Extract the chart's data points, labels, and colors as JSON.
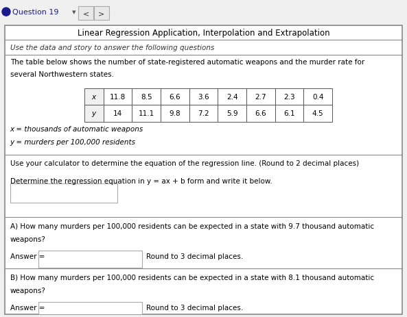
{
  "title": "Linear Regression Application, Interpolation and Extrapolation",
  "subtitle": "Use the data and story to answer the following questions",
  "desc_line1": "The table below shows the number of state-registered automatic weapons and the murder rate for",
  "desc_line2": "several Northwestern states.",
  "x_row": [
    "x",
    "11.8",
    "8.5",
    "6.6",
    "3.6",
    "2.4",
    "2.7",
    "2.3",
    "0.4"
  ],
  "y_row": [
    "y",
    "14",
    "11.1",
    "9.8",
    "7.2",
    "5.9",
    "6.6",
    "6.1",
    "4.5"
  ],
  "x_label": "x = thousands of automatic weapons",
  "y_label": "y = murders per 100,000 residents",
  "instr1": "Use your calculator to determine the equation of the regression line. (Round to 2 decimal places)",
  "instr2": "Determine the regression equation in y = ax + b form and write it below.",
  "qa": "A) How many murders per 100,000 residents can be expected in a state with 9.7 thousand automatic",
  "qa2": "weapons?",
  "qb": "B) How many murders per 100,000 residents can be expected in a state with 8.1 thousand automatic",
  "qb2": "weapons?",
  "answer_label": "Answer =",
  "round_label": "Round to 3 decimal places.",
  "nav_text": "Question 19",
  "nav_dot_color": "#1a1a8c",
  "bg_color": "#f0f0f0",
  "main_bg": "#ffffff",
  "border_color": "#888888",
  "sep_color": "#888888",
  "input_border": "#aaaaaa",
  "text_color": "#000000",
  "font_size": 7.5,
  "title_font_size": 8.5
}
